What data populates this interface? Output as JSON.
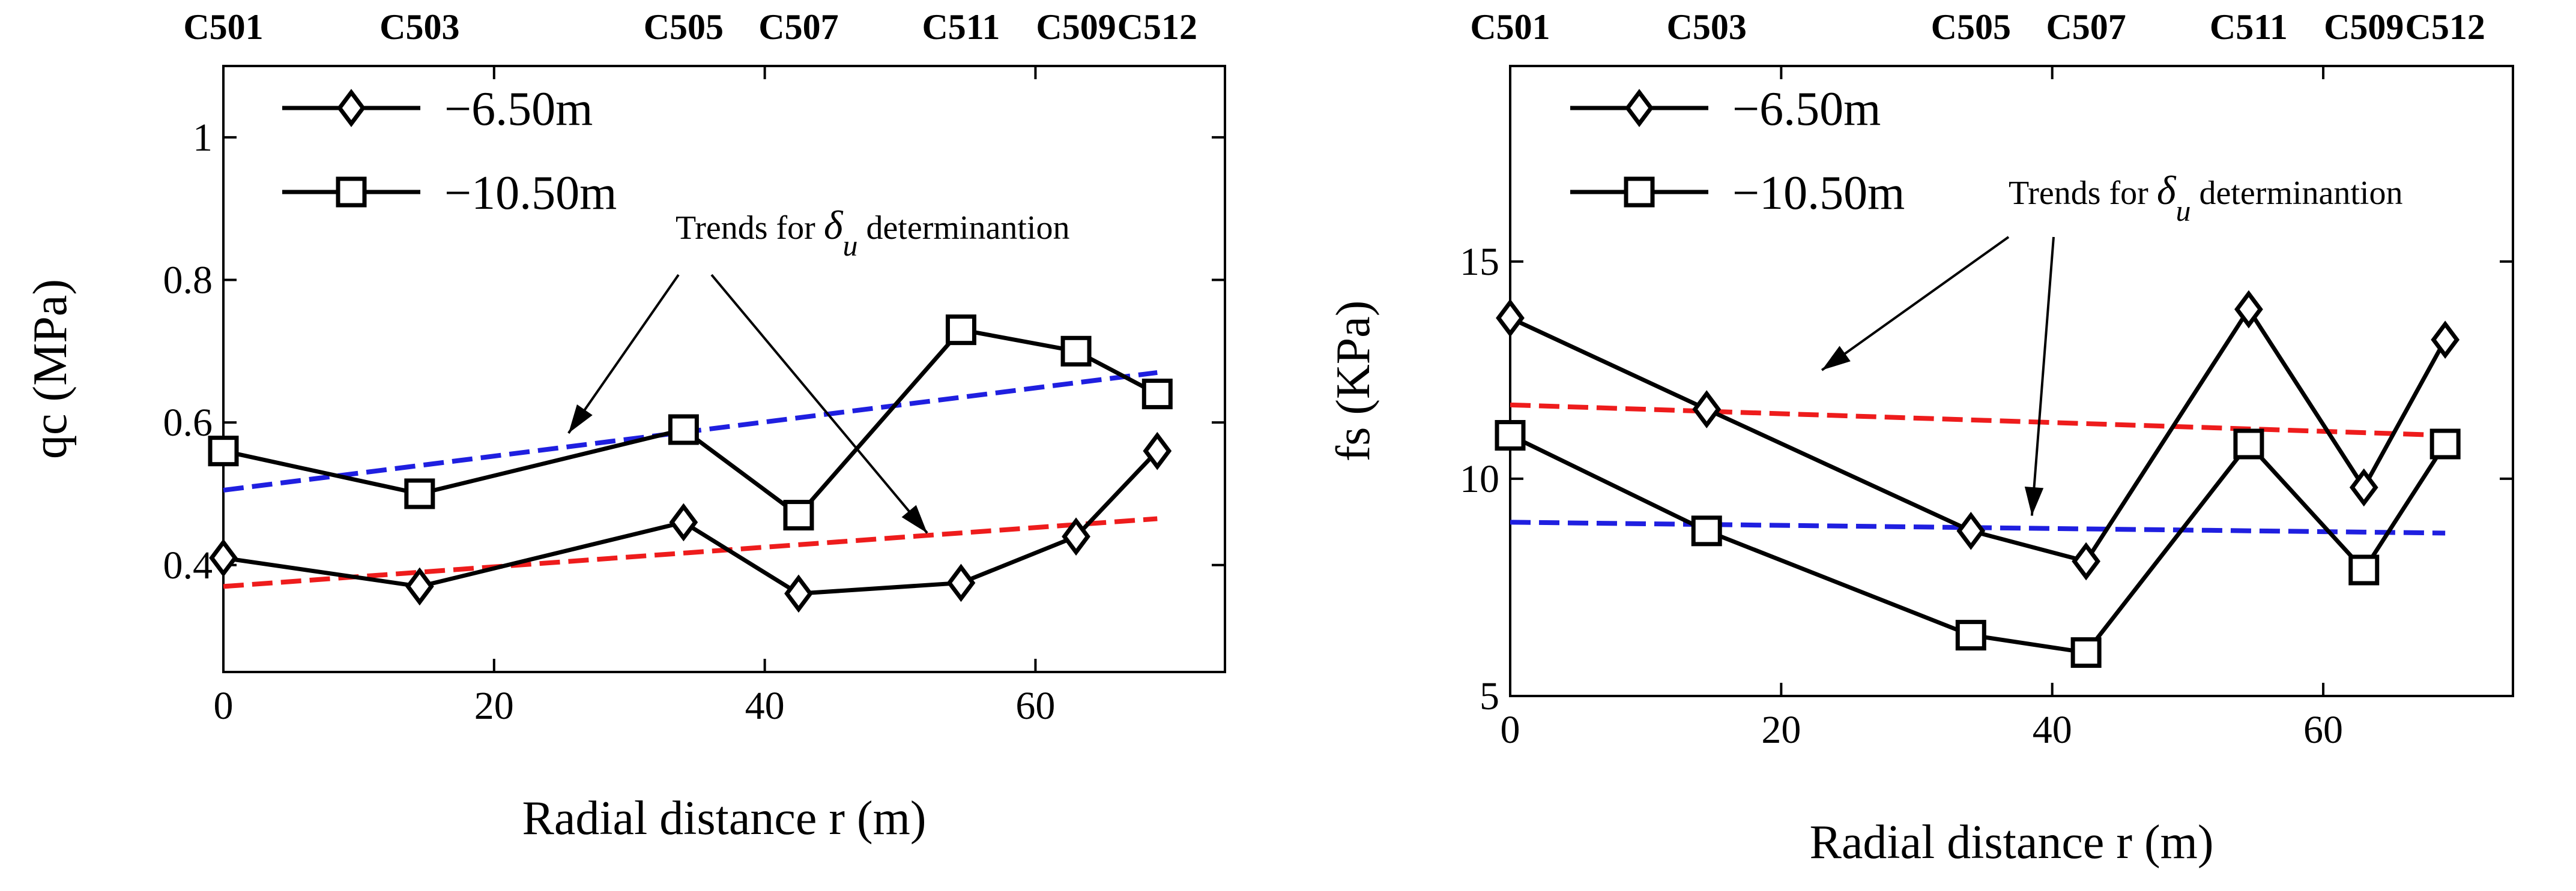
{
  "chart_data": [
    {
      "type": "line",
      "panel": "left",
      "xlabel": "Radial distance r (m)",
      "ylabel": "qc (MPa)",
      "xlim": [
        0,
        74
      ],
      "ylim": [
        0.25,
        1.1
      ],
      "xticks": [
        0,
        20,
        40,
        60
      ],
      "yticks": [
        0.4,
        0.6,
        0.8,
        1
      ],
      "ytick_labels": [
        "0.4",
        "0.6",
        "0.8",
        "1"
      ],
      "top_labels": [
        {
          "text": "C501",
          "x": 0
        },
        {
          "text": "C503",
          "x": 14.5
        },
        {
          "text": "C505",
          "x": 34
        },
        {
          "text": "C507",
          "x": 42.5
        },
        {
          "text": "C511",
          "x": 54.5
        },
        {
          "text": "C509",
          "x": 63
        },
        {
          "text": "C512",
          "x": 69
        }
      ],
      "x": [
        0,
        14.5,
        34,
        42.5,
        54.5,
        63,
        69
      ],
      "series": [
        {
          "name": "−6.50m",
          "marker": "diamond",
          "values": [
            0.41,
            0.37,
            0.46,
            0.36,
            0.375,
            0.44,
            0.56
          ]
        },
        {
          "name": "−10.50m",
          "marker": "square",
          "values": [
            0.56,
            0.5,
            0.59,
            0.47,
            0.73,
            0.7,
            0.64
          ]
        }
      ],
      "trends": [
        {
          "color": "#1f1fe0",
          "x": [
            0,
            69
          ],
          "values": [
            0.505,
            0.67
          ]
        },
        {
          "color": "#ee1c1c",
          "x": [
            0,
            69
          ],
          "values": [
            0.37,
            0.465
          ]
        }
      ],
      "annotation": {
        "prefix": "Trends for ",
        "symbol": "δ",
        "subscript": "u",
        "suffix": " determinantion",
        "arrow_targets": [
          [
            25.5,
            0.585
          ],
          [
            52,
            0.445
          ]
        ]
      }
    },
    {
      "type": "line",
      "panel": "right",
      "xlabel": "Radial distance r (m)",
      "ylabel": "fs (KPa)",
      "xlim": [
        0,
        74
      ],
      "ylim": [
        5,
        19.5
      ],
      "xticks": [
        0,
        20,
        40,
        60
      ],
      "yticks": [
        5,
        10,
        15
      ],
      "ytick_labels": [
        "5",
        "10",
        "15"
      ],
      "top_labels": [
        {
          "text": "C501",
          "x": 0
        },
        {
          "text": "C503",
          "x": 14.5
        },
        {
          "text": "C505",
          "x": 34
        },
        {
          "text": "C507",
          "x": 42.5
        },
        {
          "text": "C511",
          "x": 54.5
        },
        {
          "text": "C509",
          "x": 63
        },
        {
          "text": "C512",
          "x": 69
        }
      ],
      "x": [
        0,
        14.5,
        34,
        42.5,
        54.5,
        63,
        69
      ],
      "series": [
        {
          "name": "−6.50m",
          "marker": "diamond",
          "values": [
            13.7,
            11.6,
            8.8,
            8.1,
            13.9,
            9.8,
            13.2
          ]
        },
        {
          "name": "−10.50m",
          "marker": "square",
          "values": [
            11.0,
            8.8,
            6.4,
            6.0,
            10.8,
            7.9,
            10.8
          ]
        }
      ],
      "trends": [
        {
          "color": "#ee1c1c",
          "x": [
            0,
            69
          ],
          "values": [
            11.7,
            11.0
          ]
        },
        {
          "color": "#1f1fe0",
          "x": [
            0,
            69
          ],
          "values": [
            9.0,
            8.75
          ]
        }
      ],
      "annotation": {
        "prefix": "Trends for ",
        "symbol": "δ",
        "subscript": "u",
        "suffix": " determinantion",
        "arrow_targets": [
          [
            23,
            12.5
          ],
          [
            38.5,
            9.15
          ]
        ]
      }
    }
  ],
  "colors": {
    "axis": "#000000",
    "series": "#000000",
    "trend_blue": "#1f1fe0",
    "trend_red": "#ee1c1c"
  }
}
